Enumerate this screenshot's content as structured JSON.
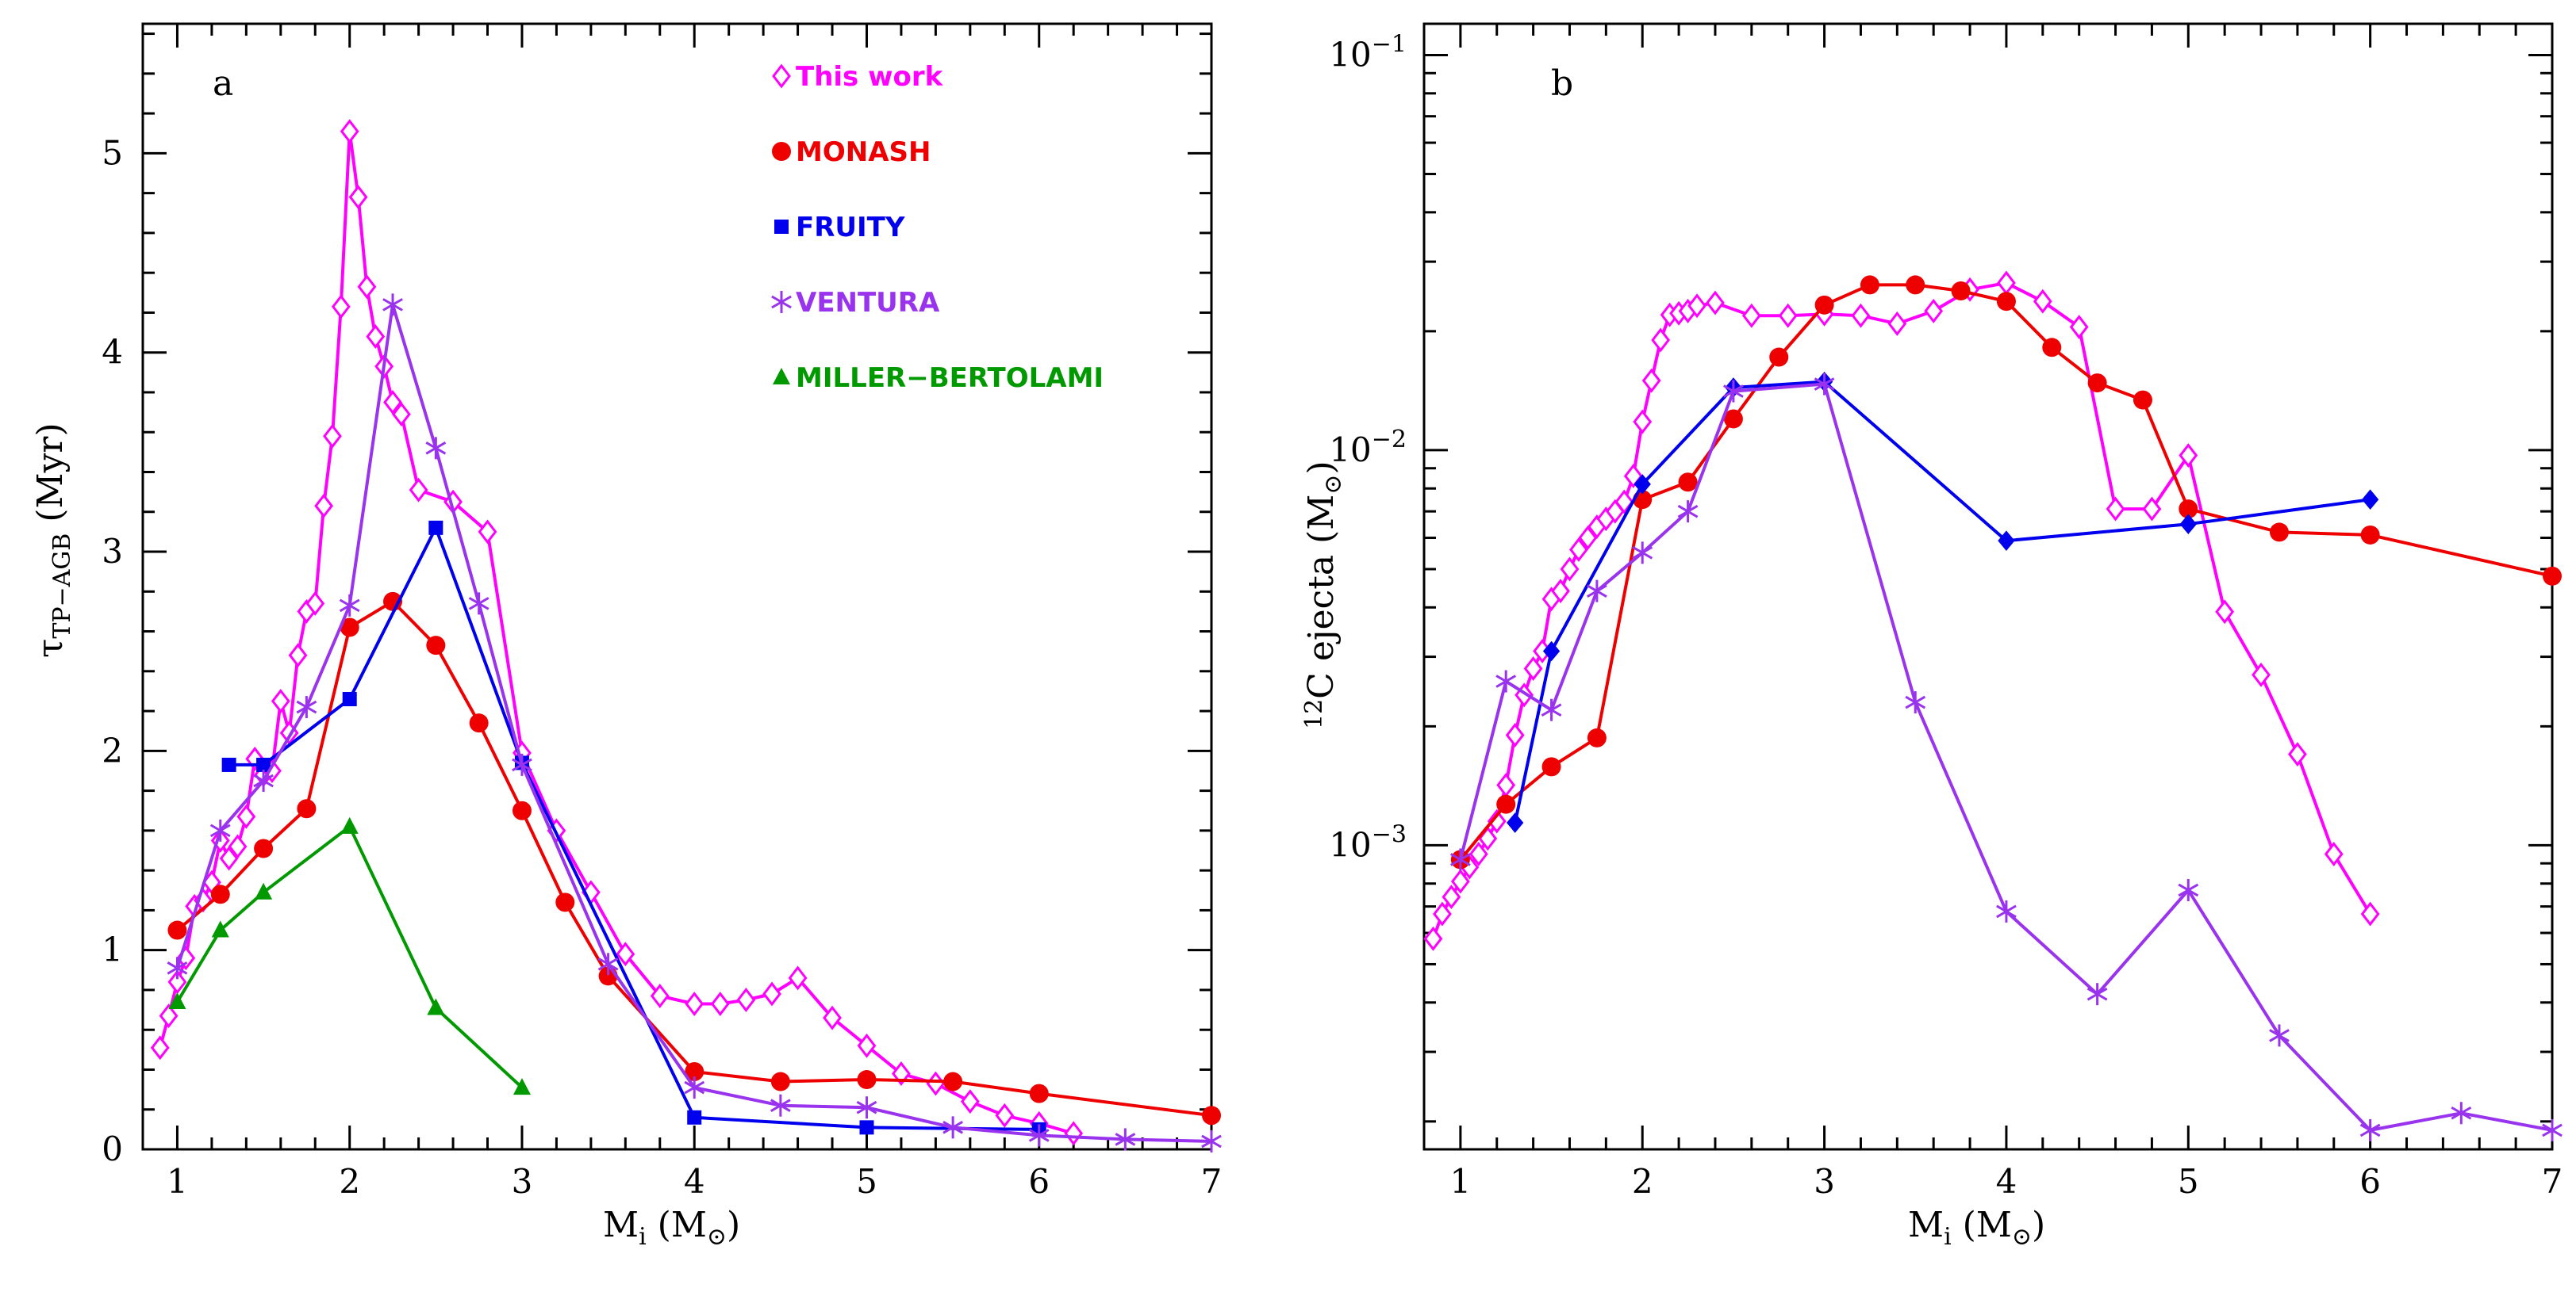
{
  "colors": {
    "this_work": "#ff00ff",
    "monash": "#ee0000",
    "fruity": "#0000ee",
    "ventura": "#9933ee",
    "miller_bertolami": "#009900"
  },
  "legend": [
    {
      "key": "this_work",
      "label": "This work",
      "marker": "diamond-open"
    },
    {
      "key": "monash",
      "label": "MONASH",
      "marker": "circle"
    },
    {
      "key": "fruity",
      "label": "FRUITY",
      "marker": "square"
    },
    {
      "key": "ventura",
      "label": "VENTURA",
      "marker": "star"
    },
    {
      "key": "miller_bertolami",
      "label": "MILLER−BERTOLAMI",
      "marker": "triangle"
    }
  ],
  "chart_data": [
    {
      "type": "line",
      "panel": "a",
      "xlabel": "M_i (M_⊙)",
      "ylabel": "τ_TP-AGB (Myr)",
      "xlim": [
        0.8,
        7.0
      ],
      "ylim": [
        0,
        5.65
      ],
      "xticks": [
        1,
        2,
        3,
        4,
        5,
        6,
        7
      ],
      "yticks": [
        0,
        1,
        2,
        3,
        4,
        5
      ],
      "series": [
        {
          "name": "This work",
          "color_key": "this_work",
          "marker": "diamond-open",
          "x": [
            0.9,
            0.95,
            1.0,
            1.05,
            1.1,
            1.15,
            1.2,
            1.25,
            1.3,
            1.35,
            1.4,
            1.45,
            1.5,
            1.55,
            1.6,
            1.65,
            1.7,
            1.75,
            1.8,
            1.85,
            1.9,
            1.95,
            2.0,
            2.05,
            2.1,
            2.15,
            2.2,
            2.25,
            2.3,
            2.4,
            2.6,
            2.8,
            3.0,
            3.2,
            3.4,
            3.6,
            3.8,
            4.0,
            4.15,
            4.3,
            4.45,
            4.6,
            4.8,
            5.0,
            5.2,
            5.4,
            5.6,
            5.8,
            6.0,
            6.2
          ],
          "y": [
            0.51,
            0.67,
            0.84,
            0.96,
            1.22,
            1.25,
            1.34,
            1.55,
            1.46,
            1.52,
            1.67,
            1.96,
            1.88,
            1.9,
            2.25,
            2.09,
            2.48,
            2.7,
            2.74,
            3.23,
            3.58,
            4.23,
            5.11,
            4.78,
            4.33,
            4.08,
            3.93,
            3.75,
            3.69,
            3.31,
            3.25,
            3.1,
            1.99,
            1.6,
            1.29,
            0.98,
            0.77,
            0.73,
            0.73,
            0.75,
            0.78,
            0.86,
            0.66,
            0.52,
            0.38,
            0.33,
            0.24,
            0.17,
            0.13,
            0.08
          ]
        },
        {
          "name": "MONASH",
          "color_key": "monash",
          "marker": "circle",
          "x": [
            1.0,
            1.25,
            1.5,
            1.75,
            2.0,
            2.25,
            2.5,
            2.75,
            3.0,
            3.25,
            3.5,
            4.0,
            4.5,
            5.0,
            5.5,
            6.0,
            7.0
          ],
          "y": [
            1.1,
            1.28,
            1.51,
            1.71,
            2.62,
            2.75,
            2.53,
            2.14,
            1.7,
            1.24,
            0.87,
            0.39,
            0.34,
            0.35,
            0.34,
            0.28,
            0.17
          ]
        },
        {
          "name": "FRUITY",
          "color_key": "fruity",
          "marker": "square",
          "x": [
            1.3,
            1.5,
            2.0,
            2.5,
            3.0,
            4.0,
            5.0,
            6.0
          ],
          "y": [
            1.93,
            1.93,
            2.26,
            3.12,
            1.94,
            0.16,
            0.11,
            0.1
          ]
        },
        {
          "name": "VENTURA",
          "color_key": "ventura",
          "marker": "star",
          "x": [
            1.0,
            1.25,
            1.5,
            1.75,
            2.0,
            2.25,
            2.5,
            2.75,
            3.0,
            3.5,
            4.0,
            4.5,
            5.0,
            5.5,
            6.0,
            6.5,
            7.0
          ],
          "y": [
            0.91,
            1.6,
            1.85,
            2.22,
            2.73,
            4.24,
            3.52,
            2.74,
            1.93,
            0.93,
            0.31,
            0.22,
            0.21,
            0.11,
            0.07,
            0.05,
            0.04
          ]
        },
        {
          "name": "MILLER-BERTOLAMI",
          "color_key": "miller_bertolami",
          "marker": "triangle",
          "x": [
            1.0,
            1.25,
            1.5,
            2.0,
            2.5,
            3.0
          ],
          "y": [
            0.74,
            1.1,
            1.29,
            1.62,
            0.71,
            0.31
          ]
        }
      ]
    },
    {
      "type": "line",
      "panel": "b",
      "yscale": "log",
      "xlabel": "M_i (M_⊙)",
      "ylabel": "¹²C ejecta (M_⊙)",
      "xlim": [
        0.8,
        7.0
      ],
      "ylim": [
        0.00017,
        0.12
      ],
      "xticks": [
        1,
        2,
        3,
        4,
        5,
        6,
        7
      ],
      "yticks": [
        0.001,
        0.01,
        0.1
      ],
      "series": [
        {
          "name": "This work",
          "color_key": "this_work",
          "marker": "diamond-open",
          "x": [
            0.85,
            0.9,
            0.95,
            1.0,
            1.05,
            1.1,
            1.15,
            1.2,
            1.25,
            1.3,
            1.35,
            1.4,
            1.45,
            1.5,
            1.55,
            1.6,
            1.65,
            1.7,
            1.75,
            1.8,
            1.85,
            1.9,
            1.95,
            2.0,
            2.05,
            2.1,
            2.15,
            2.2,
            2.25,
            2.3,
            2.4,
            2.6,
            2.8,
            3.0,
            3.2,
            3.4,
            3.6,
            3.8,
            4.0,
            4.2,
            4.4,
            4.6,
            4.8,
            5.0,
            5.2,
            5.4,
            5.6,
            5.8,
            6.0
          ],
          "y": [
            0.00058,
            0.00067,
            0.00074,
            0.00081,
            0.00088,
            0.00095,
            0.00104,
            0.00115,
            0.00142,
            0.0019,
            0.0024,
            0.0028,
            0.0031,
            0.0042,
            0.0044,
            0.005,
            0.0056,
            0.006,
            0.0064,
            0.0067,
            0.007,
            0.0074,
            0.0086,
            0.0118,
            0.015,
            0.019,
            0.022,
            0.0222,
            0.0225,
            0.0232,
            0.0236,
            0.0219,
            0.0219,
            0.0221,
            0.0219,
            0.0209,
            0.0225,
            0.0255,
            0.0265,
            0.0238,
            0.0205,
            0.0071,
            0.0071,
            0.0097,
            0.0039,
            0.0027,
            0.0017,
            0.00095,
            0.00067
          ]
        },
        {
          "name": "MONASH",
          "color_key": "monash",
          "marker": "circle",
          "x": [
            1.0,
            1.25,
            1.5,
            1.75,
            2.0,
            2.25,
            2.5,
            2.75,
            3.0,
            3.25,
            3.5,
            3.75,
            4.0,
            4.25,
            4.5,
            4.75,
            5.0,
            5.5,
            6.0,
            7.0
          ],
          "y": [
            0.00092,
            0.00127,
            0.00158,
            0.00187,
            0.0075,
            0.0083,
            0.012,
            0.0172,
            0.0233,
            0.0262,
            0.0262,
            0.0253,
            0.0238,
            0.0182,
            0.0148,
            0.0134,
            0.0071,
            0.0062,
            0.0061,
            0.0048
          ]
        },
        {
          "name": "FRUITY",
          "color_key": "fruity",
          "marker": "diamond-filled",
          "x": [
            1.3,
            1.5,
            2.0,
            2.5,
            3.0,
            4.0,
            5.0,
            6.0
          ],
          "y": [
            0.00114,
            0.0031,
            0.0082,
            0.0144,
            0.0149,
            0.0059,
            0.0065,
            0.0075
          ]
        },
        {
          "name": "VENTURA",
          "color_key": "ventura",
          "marker": "star",
          "x": [
            1.0,
            1.25,
            1.5,
            1.75,
            2.0,
            2.25,
            2.5,
            3.0,
            3.5,
            4.0,
            4.5,
            5.0,
            5.5,
            6.0,
            6.5,
            7.0
          ],
          "y": [
            0.00092,
            0.0026,
            0.0022,
            0.0044,
            0.0055,
            0.007,
            0.0141,
            0.0147,
            0.0023,
            0.00068,
            0.00042,
            0.00077,
            0.00033,
            0.00019,
            0.00021,
            0.00019
          ]
        }
      ]
    }
  ]
}
